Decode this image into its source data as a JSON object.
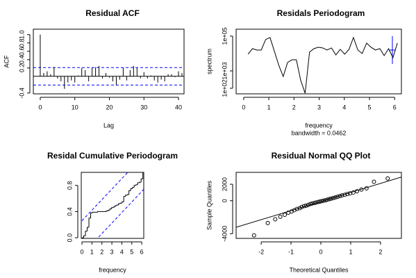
{
  "chart_data": [
    {
      "type": "bar",
      "title": "Residual ACF",
      "x_label": "Lag",
      "y_label": "ACF",
      "x": [
        0,
        1,
        2,
        3,
        4,
        5,
        6,
        7,
        8,
        9,
        10,
        11,
        12,
        13,
        14,
        15,
        16,
        17,
        18,
        19,
        20,
        21,
        22,
        23,
        24,
        25,
        26,
        27,
        28,
        29,
        30,
        31,
        32,
        33,
        34,
        35,
        36,
        37,
        38,
        39,
        40,
        41
      ],
      "values": [
        1,
        0.08,
        0.12,
        0.05,
        0.22,
        -0.05,
        -0.12,
        -0.3,
        -0.15,
        -0.1,
        -0.15,
        0.02,
        0.2,
        0.15,
        -0.12,
        0.2,
        0.22,
        0.25,
        -0.05,
        0.08,
        -0.03,
        -0.12,
        -0.22,
        -0.08,
        0.2,
        -0.1,
        0.15,
        0.25,
        0.2,
        -0.05,
        0.1,
        -0.05,
        0.02,
        -0.1,
        -0.15,
        -0.08,
        -0.12,
        0.05,
        0.05,
        -0.02,
        0.12,
        0.08
      ],
      "color": "#000000",
      "ci": 0.21,
      "ci_color": "#0000ff",
      "xlim": [
        -2,
        41.6
      ],
      "xticks": [
        0,
        10,
        20,
        30,
        40
      ],
      "ylim": [
        -0.42,
        1.13
      ],
      "yticks": [
        -0.4,
        0.2,
        0.4,
        0.6,
        0.8,
        {
          "value": 1,
          "label": "1.0"
        }
      ]
    },
    {
      "type": "line",
      "title": "Residals Periodogram",
      "x_label": "frequency",
      "subtitle": "bandwidth = 0.0462",
      "y_label": "spectrum",
      "log_y": true,
      "color": "#000000",
      "x": [
        0.175,
        0.349,
        0.524,
        0.698,
        0.873,
        1.047,
        1.222,
        1.396,
        1.571,
        1.745,
        1.92,
        2.094,
        2.269,
        2.443,
        2.618,
        2.793,
        2.967,
        3.142,
        3.316,
        3.491,
        3.665,
        3.84,
        4.014,
        4.189,
        4.363,
        4.538,
        4.712,
        4.887,
        5.061,
        5.236,
        5.411,
        5.585,
        5.76,
        5.934,
        6.109
      ],
      "values": [
        9120,
        19050,
        15850,
        15850,
        63100,
        83200,
        13200,
        2090,
        479,
        3020,
        4370,
        4370,
        275,
        52,
        12020,
        19050,
        22900,
        20900,
        15850,
        20900,
        8320,
        17380,
        9120,
        17380,
        83200,
        15850,
        10000,
        39800,
        22900,
        15850,
        19050,
        7590,
        19050,
        5750,
        39800
      ],
      "xlim": [
        -0.3,
        6.27
      ],
      "xticks": [
        0,
        1,
        2,
        3,
        4,
        5,
        6
      ],
      "ylim": [
        48,
        250000
      ],
      "yticks": [
        {
          "value": 100,
          "label": "1e+02"
        },
        {
          "value": 1000,
          "label": "1e+03"
        },
        {
          "value": 100000,
          "label": "1e+05"
        }
      ]
    },
    {
      "type": "step",
      "title": "Residal Cumulative Periodogram",
      "x_label": "frequency",
      "color": "#000000",
      "ci": 0.26,
      "ci_color": "#0000ff",
      "x": [
        0,
        0.175,
        0.349,
        0.524,
        0.698,
        0.873,
        1.047,
        1.222,
        1.396,
        1.571,
        1.745,
        1.92,
        2.094,
        2.269,
        2.443,
        2.618,
        2.793,
        2.967,
        3.142,
        3.316,
        3.491,
        3.665,
        3.84,
        4.014,
        4.189,
        4.363,
        4.538,
        4.712,
        4.887,
        5.061,
        5.236,
        5.411,
        5.585,
        5.76,
        5.934,
        6.109
      ],
      "values": [
        0,
        0.03,
        0.1,
        0.16,
        0.3,
        0.38,
        0.39,
        0.39,
        0.39,
        0.4,
        0.4,
        0.4,
        0.4,
        0.4,
        0.41,
        0.42,
        0.44,
        0.46,
        0.47,
        0.49,
        0.5,
        0.52,
        0.53,
        0.55,
        0.63,
        0.65,
        0.66,
        0.72,
        0.75,
        0.77,
        0.8,
        0.81,
        0.84,
        0.85,
        0.9,
        1.0
      ],
      "xlim": [
        -0.07,
        6.2
      ],
      "xticks": [
        0,
        1,
        2,
        3,
        4,
        5,
        6
      ],
      "ylim": [
        -0.01,
        1.0
      ],
      "yticks": [
        {
          "value": 0,
          "label": "0.0"
        },
        0.4,
        0.8
      ]
    },
    {
      "type": "scatter",
      "title": "Residual Normal QQ Plot",
      "x_label": "Theoretical Quantiles",
      "y_label": "Sample Quantiles",
      "color": "#000000",
      "qqline": {
        "intercept": -100,
        "slope": 1100
      },
      "x": [
        -2.24,
        -1.78,
        -1.53,
        -1.36,
        -1.21,
        -1.09,
        -0.98,
        -0.89,
        -0.8,
        -0.71,
        -0.64,
        -0.56,
        -0.49,
        -0.42,
        -0.35,
        -0.29,
        -0.22,
        -0.16,
        -0.09,
        -0.03,
        0.03,
        0.09,
        0.16,
        0.22,
        0.29,
        0.35,
        0.42,
        0.49,
        0.56,
        0.64,
        0.71,
        0.8,
        0.89,
        0.98,
        1.09,
        1.21,
        1.36,
        1.53,
        1.78,
        2.24
      ],
      "values": [
        -4200,
        -2700,
        -2250,
        -1950,
        -1700,
        -1450,
        -1300,
        -1150,
        -1000,
        -900,
        -750,
        -650,
        -600,
        -500,
        -400,
        -330,
        -280,
        -220,
        -150,
        -100,
        -50,
        0,
        60,
        130,
        200,
        260,
        330,
        400,
        480,
        560,
        650,
        720,
        820,
        900,
        1000,
        1150,
        1350,
        1500,
        2300,
        2700
      ],
      "xlim": [
        -2.84,
        2.7
      ],
      "xticks": [
        -2,
        -1,
        0,
        1,
        2
      ],
      "ylim": [
        -4570,
        3440
      ],
      "yticks": [
        -4000,
        0,
        2000
      ]
    }
  ]
}
